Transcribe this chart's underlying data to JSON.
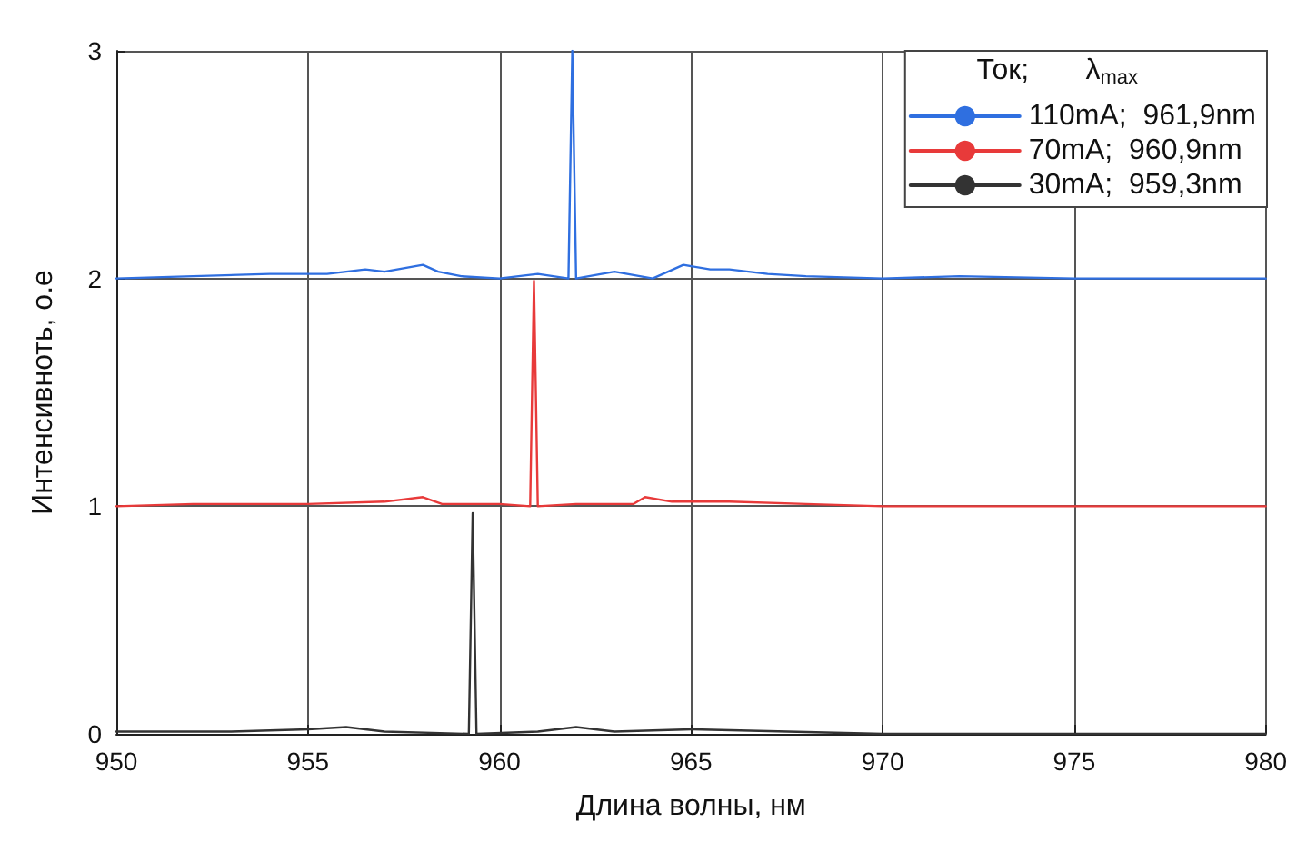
{
  "chart_data": {
    "type": "line",
    "xlabel": "Длина волны, нм",
    "ylabel": "Интенсивноть, о.е",
    "legend_title": "Ток;       λ$_{max}$",
    "legend": "top right",
    "grid": true,
    "marker": "none",
    "line_style": "solid",
    "xlim": [
      950,
      980
    ],
    "xticks": [
      950,
      955,
      960,
      965,
      970,
      975,
      980
    ],
    "ylim": [
      0,
      3
    ],
    "yticks": [
      0,
      1,
      2,
      3
    ],
    "series": [
      {
        "name": "110mA;  961,9nm",
        "color": "#2f6fe0",
        "x": [
          950,
          952,
          954,
          955.5,
          956.5,
          957,
          958,
          958.4,
          959,
          960,
          961,
          961.8,
          961.9,
          962,
          963,
          964,
          964.8,
          965.5,
          966,
          967,
          968,
          970,
          972,
          975,
          978,
          980
        ],
        "values": [
          2.0,
          2.01,
          2.02,
          2.02,
          2.04,
          2.03,
          2.06,
          2.03,
          2.01,
          2.0,
          2.02,
          2.0,
          3,
          2.0,
          2.03,
          2.0,
          2.06,
          2.04,
          2.04,
          2.02,
          2.01,
          2.0,
          2.01,
          2.0,
          2.0,
          2.0
        ]
      },
      {
        "name": "70mA;  960,9nm",
        "color": "#e83a3a",
        "x": [
          950,
          952,
          955,
          957,
          958,
          958.5,
          960,
          960.8,
          960.9,
          961,
          962,
          963.5,
          963.8,
          964.5,
          966,
          968,
          970,
          975,
          980
        ],
        "values": [
          1.0,
          1.01,
          1.01,
          1.02,
          1.04,
          1.01,
          1.01,
          1.0,
          1.99,
          1.0,
          1.01,
          1.01,
          1.04,
          1.02,
          1.02,
          1.01,
          1.0,
          1.0,
          1.0
        ]
      },
      {
        "name": "30mA;  959,3nm",
        "color": "#333333",
        "x": [
          950,
          953,
          955,
          956,
          957,
          959.2,
          959.3,
          959.4,
          961,
          962,
          963,
          965,
          970,
          975,
          980
        ],
        "values": [
          0.01,
          0.01,
          0.02,
          0.03,
          0.01,
          0.0,
          0.97,
          0.0,
          0.01,
          0.03,
          0.01,
          0.02,
          0.0,
          0.0,
          0.0
        ]
      }
    ]
  }
}
